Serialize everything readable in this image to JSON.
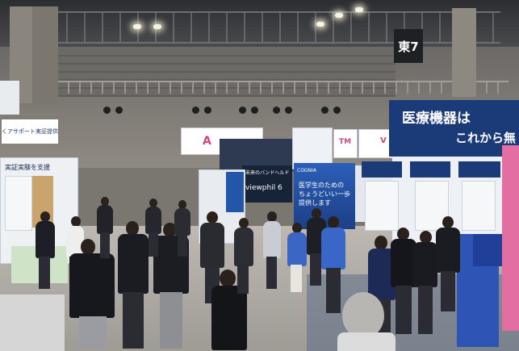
{
  "scene": {
    "type": "exhibition-hall-photo",
    "hall_sign": "東7",
    "booth_banners": {
      "main_banner_line1": "医療機器は",
      "main_banner_line2": "これから無",
      "viewphil_sign": "viewphil 6",
      "center_banner": "未来のバンドヘルド超音",
      "left_banner": "くアサポート実証提供",
      "left_panel_title": "実証実験を支援",
      "small_brand": "A",
      "poster_text": "医学生のための\nちょうどいい一歩\n提供します",
      "brand_text": "COGNIA",
      "small_logo": "TM",
      "small_logo_right": "V"
    },
    "colors": {
      "booth_navy": "#1b3a78",
      "booth_blue": "#2b5fb8",
      "floor": "#b7b3ac",
      "ceiling": "#2c2d30",
      "accent_magenta": "#d9417a"
    }
  }
}
